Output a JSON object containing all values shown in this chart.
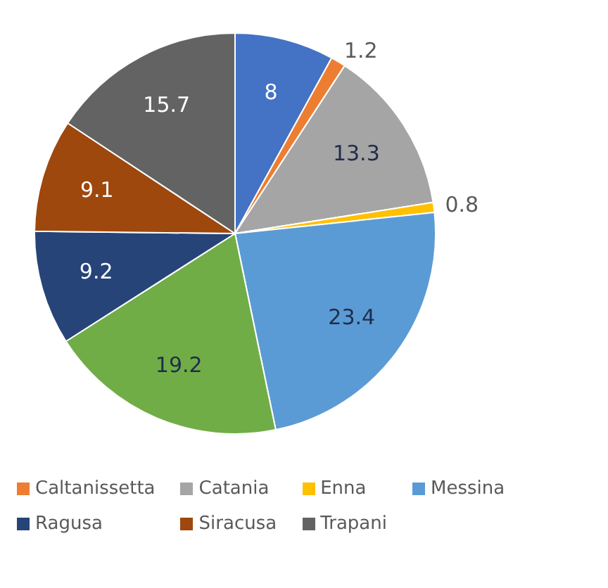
{
  "chart_data": {
    "type": "pie",
    "categories": [
      null,
      "Caltanissetta",
      "Catania",
      "Enna",
      "Messina",
      null,
      "Ragusa",
      "Siracusa",
      "Trapani"
    ],
    "values": [
      8,
      1.2,
      13.3,
      0.8,
      23.4,
      19.2,
      9.2,
      9.1,
      15.7
    ],
    "colors": [
      "#4472c4",
      "#ed7d31",
      "#a5a5a5",
      "#ffc000",
      "#5b9bd5",
      "#70ad47",
      "#264478",
      "#9e480e",
      "#636363"
    ],
    "data_labels": true,
    "legend": "bottom"
  }
}
